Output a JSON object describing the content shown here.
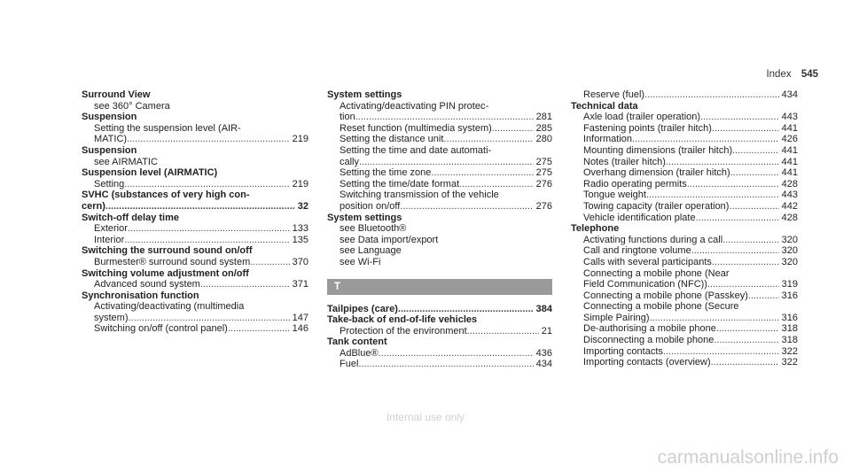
{
  "header": {
    "section": "Index",
    "page_number": "545"
  },
  "watermark": "Internal use only",
  "footer": "carmanualsonline.info",
  "col1": [
    {
      "type": "heading",
      "text": "Surround View"
    },
    {
      "type": "line",
      "text": "see 360° Camera"
    },
    {
      "type": "heading",
      "text": "Suspension"
    },
    {
      "type": "line",
      "text": "Setting the suspension level (AIR-"
    },
    {
      "type": "entry",
      "text": "MATIC)",
      "page": "219"
    },
    {
      "type": "heading",
      "text": "Suspension"
    },
    {
      "type": "line",
      "text": "see AIRMATIC"
    },
    {
      "type": "heading",
      "text": "Suspension level (AIRMATIC)"
    },
    {
      "type": "entry",
      "text": "Setting",
      "page": "219"
    },
    {
      "type": "heading",
      "text": "SVHC (substances of very high con-"
    },
    {
      "type": "heading-entry",
      "text": "cern)",
      "page": "32"
    },
    {
      "type": "heading",
      "text": "Switch-off delay time"
    },
    {
      "type": "entry",
      "text": "Exterior",
      "page": "133"
    },
    {
      "type": "entry",
      "text": "Interior",
      "page": "135"
    },
    {
      "type": "heading",
      "text": "Switching the surround sound on/off"
    },
    {
      "type": "entry",
      "text": "Burmester® surround sound system",
      "page": "370"
    },
    {
      "type": "heading",
      "text": "Switching volume adjustment on/off"
    },
    {
      "type": "entry",
      "text": "Advanced sound system",
      "page": "371"
    },
    {
      "type": "heading",
      "text": "Synchronisation function"
    },
    {
      "type": "line",
      "text": "Activating/deactivating (multimedia"
    },
    {
      "type": "entry",
      "text": "system)",
      "page": "147"
    },
    {
      "type": "entry",
      "text": "Switching on/off (control panel)",
      "page": "146"
    }
  ],
  "col2": [
    {
      "type": "heading",
      "text": "System settings"
    },
    {
      "type": "line",
      "text": "Activating/deactivating PIN protec-"
    },
    {
      "type": "entry",
      "text": "tion",
      "page": "281"
    },
    {
      "type": "entry",
      "text": "Reset function (multimedia system)",
      "page": "285"
    },
    {
      "type": "entry",
      "text": "Setting the distance unit",
      "page": "280"
    },
    {
      "type": "line",
      "text": "Setting the time and date automati-"
    },
    {
      "type": "entry",
      "text": "cally",
      "page": "275"
    },
    {
      "type": "entry",
      "text": "Setting the time zone",
      "page": "275"
    },
    {
      "type": "entry",
      "text": "Setting the time/date format",
      "page": "276"
    },
    {
      "type": "line",
      "text": "Switching transmission of the vehicle"
    },
    {
      "type": "entry",
      "text": "position on/off",
      "page": "276"
    },
    {
      "type": "heading",
      "text": "System settings"
    },
    {
      "type": "line",
      "text": "see Bluetooth®"
    },
    {
      "type": "line",
      "text": "see Data import/export"
    },
    {
      "type": "line",
      "text": "see Language"
    },
    {
      "type": "line",
      "text": "see Wi-Fi"
    },
    {
      "type": "letter",
      "text": "T"
    },
    {
      "type": "heading-entry",
      "text": "Tailpipes (care)",
      "page": "384"
    },
    {
      "type": "heading",
      "text": "Take-back of end-of-life vehicles"
    },
    {
      "type": "entry",
      "text": "Protection of the environment",
      "page": "21"
    },
    {
      "type": "heading",
      "text": "Tank content"
    },
    {
      "type": "entry",
      "text": "AdBlue®",
      "page": "436"
    },
    {
      "type": "entry",
      "text": "Fuel",
      "page": "434"
    }
  ],
  "col3": [
    {
      "type": "entry",
      "text": "Reserve (fuel)",
      "page": "434"
    },
    {
      "type": "heading",
      "text": "Technical data"
    },
    {
      "type": "entry",
      "text": "Axle load (trailer operation)",
      "page": "443"
    },
    {
      "type": "entry",
      "text": "Fastening points (trailer hitch)",
      "page": "441"
    },
    {
      "type": "entry",
      "text": "Information",
      "page": "426"
    },
    {
      "type": "entry",
      "text": "Mounting dimensions (trailer hitch)",
      "page": "441"
    },
    {
      "type": "entry",
      "text": "Notes (trailer hitch)",
      "page": "441"
    },
    {
      "type": "entry",
      "text": "Overhang dimension (trailer hitch)",
      "page": "441"
    },
    {
      "type": "entry",
      "text": "Radio operating permits",
      "page": "428"
    },
    {
      "type": "entry",
      "text": "Tongue weight",
      "page": "443"
    },
    {
      "type": "entry",
      "text": "Towing capacity (trailer operation)",
      "page": "442"
    },
    {
      "type": "entry",
      "text": "Vehicle identification plate",
      "page": "428"
    },
    {
      "type": "heading",
      "text": "Telephone"
    },
    {
      "type": "entry",
      "text": "Activating functions during a call",
      "page": "320"
    },
    {
      "type": "entry",
      "text": "Call and ringtone volume",
      "page": "320"
    },
    {
      "type": "entry",
      "text": "Calls with several participants",
      "page": "320"
    },
    {
      "type": "line",
      "text": "Connecting a mobile phone (Near"
    },
    {
      "type": "entry",
      "text": "Field Communication (NFC))",
      "page": "319"
    },
    {
      "type": "entry",
      "text": "Connecting a mobile phone (Passkey)",
      "page": "316"
    },
    {
      "type": "line",
      "text": "Connecting a mobile phone (Secure"
    },
    {
      "type": "entry",
      "text": "Simple Pairing)",
      "page": "316"
    },
    {
      "type": "entry",
      "text": "De-authorising a mobile phone",
      "page": "318"
    },
    {
      "type": "entry",
      "text": "Disconnecting a mobile phone",
      "page": "318"
    },
    {
      "type": "entry",
      "text": "Importing contacts",
      "page": "322"
    },
    {
      "type": "entry",
      "text": "Importing contacts (overview)",
      "page": "322"
    }
  ]
}
